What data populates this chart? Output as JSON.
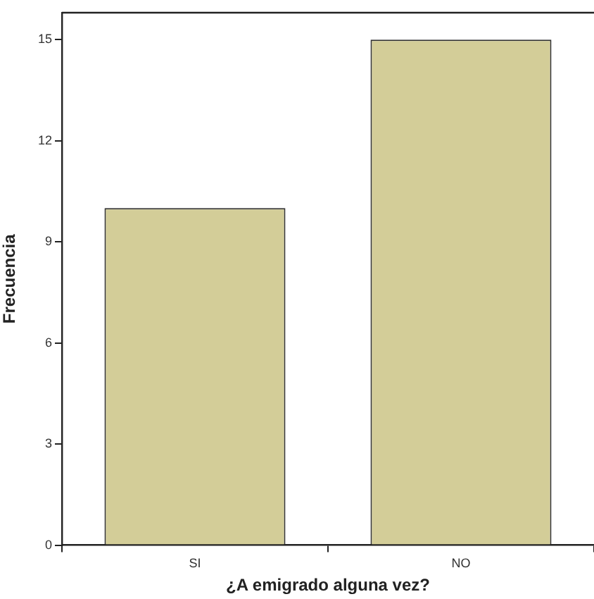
{
  "chart_data": {
    "type": "bar",
    "xlabel": "¿A emigrado alguna vez?",
    "ylabel": "Frecuencia",
    "categories": [
      "SI",
      "NO"
    ],
    "series": [
      {
        "color": "#d3cd98",
        "values": [
          10,
          15
        ]
      }
    ],
    "ylim": [
      0,
      15.8
    ],
    "yticks": [
      0,
      3,
      6,
      9,
      12,
      15
    ],
    "grid": false,
    "legend": false
  }
}
